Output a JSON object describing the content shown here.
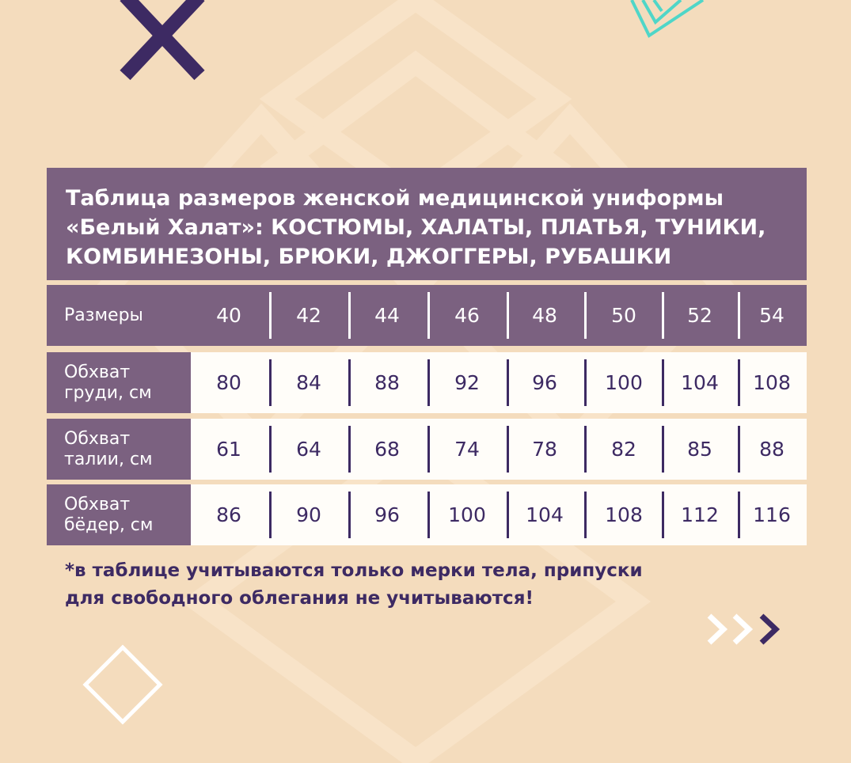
{
  "title_lines": [
    "Таблица размеров женской медицинской униформы",
    "«Белый Халат»:  КОСТЮМЫ, ХАЛАТЫ, ПЛАТЬЯ, ТУНИКИ,",
    "КОМБИНЕЗОНЫ, БРЮКИ, ДЖОГГЕРЫ, РУБАШКИ"
  ],
  "table": {
    "header": {
      "label": "Размеры",
      "values": [
        "40",
        "42",
        "44",
        "46",
        "48",
        "50",
        "52",
        "54"
      ]
    },
    "rows": [
      {
        "label1": "Обхват",
        "label2": "груди, см",
        "values": [
          "80",
          "84",
          "88",
          "92",
          "96",
          "100",
          "104",
          "108"
        ]
      },
      {
        "label1": "Обхват",
        "label2": "талии, см",
        "values": [
          "61",
          "64",
          "68",
          "74",
          "78",
          "82",
          "85",
          "88"
        ]
      },
      {
        "label1": "Обхват",
        "label2": "бёдер, см",
        "values": [
          "86",
          "90",
          "96",
          "100",
          "104",
          "108",
          "112",
          "116"
        ]
      }
    ]
  },
  "footnote_lines": [
    "*в таблице учитываются только мерки тела, припуски",
    "для свободного облегания не учитываются!"
  ],
  "colors": {
    "background": "#f4dcbd",
    "purple": "#7b6180",
    "dark_purple": "#3d2a63",
    "teal": "#4fd6c8"
  },
  "icons": [
    "cross-icon",
    "teal-chevron-lines-icon",
    "chevrons-right-icon",
    "diamond-outline-icon"
  ]
}
